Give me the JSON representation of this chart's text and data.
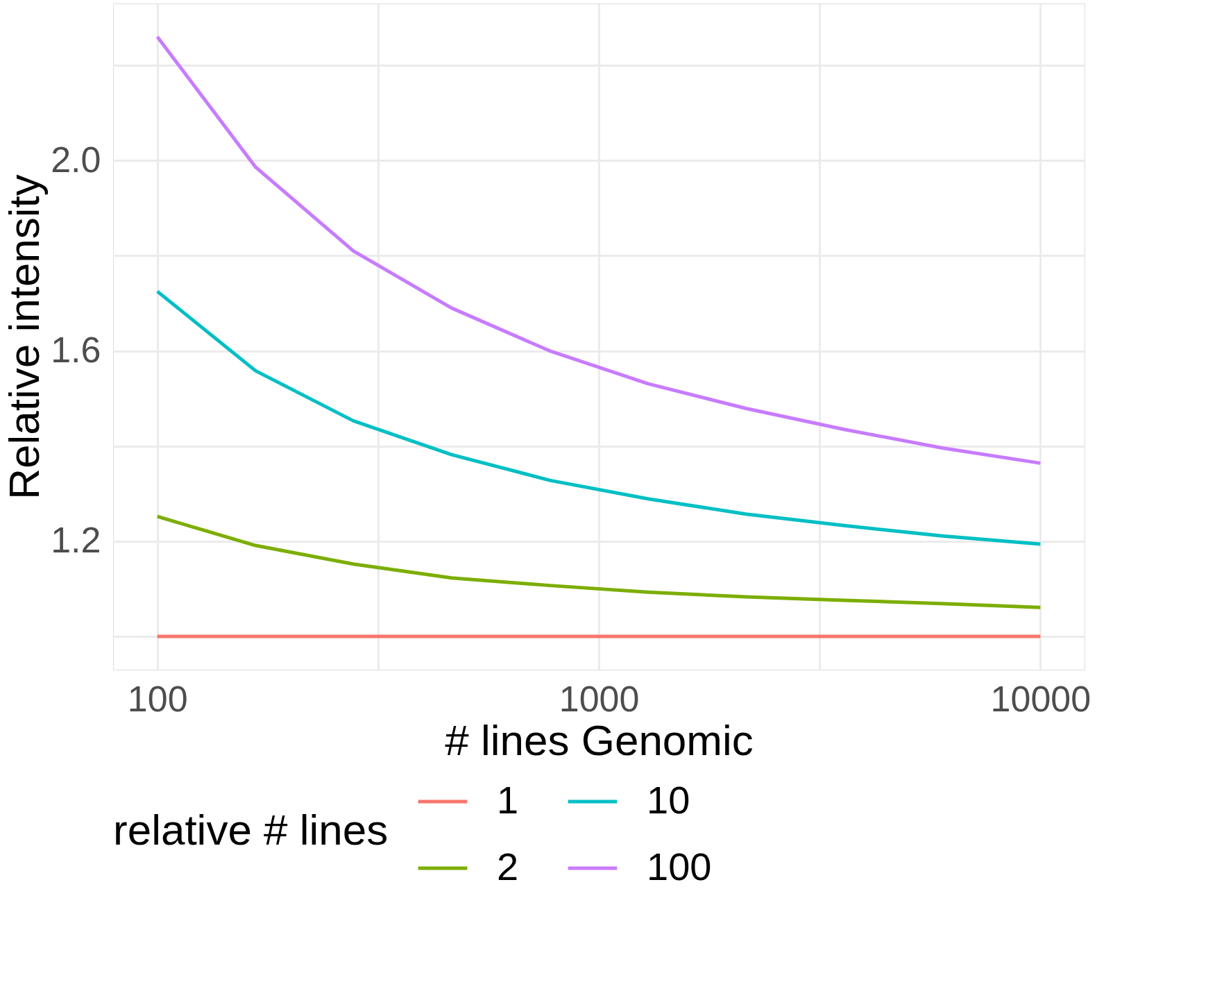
{
  "chart_data": {
    "type": "line",
    "xlabel": "# lines Genomic",
    "ylabel": "Relative intensity",
    "legend_title": "relative # lines",
    "x": [
      100,
      167,
      278,
      464,
      774,
      1292,
      2154,
      3594,
      5995,
      10000
    ],
    "series": [
      {
        "name": "1",
        "color": "#f8766d",
        "values": [
          1.0,
          1.0,
          1.0,
          1.0,
          1.0,
          1.0,
          1.0,
          1.0,
          1.0,
          1.0
        ]
      },
      {
        "name": "2",
        "color": "#7cae00",
        "values": [
          1.252,
          1.191,
          1.152,
          1.123,
          1.107,
          1.093,
          1.083,
          1.076,
          1.069,
          1.061
        ]
      },
      {
        "name": "10",
        "color": "#00bfc4",
        "values": [
          1.725,
          1.558,
          1.453,
          1.382,
          1.328,
          1.289,
          1.257,
          1.233,
          1.211,
          1.194
        ]
      },
      {
        "name": "100",
        "color": "#c77cff",
        "values": [
          2.26,
          1.986,
          1.81,
          1.69,
          1.6,
          1.531,
          1.479,
          1.435,
          1.396,
          1.364
        ]
      }
    ],
    "log": "x",
    "xlim": [
      79.4,
      12589
    ],
    "ylim": [
      0.93,
      2.33
    ],
    "xticks": [
      100,
      {
        "value": 316,
        "label": null
      },
      1000,
      {
        "value": 3162,
        "label": null
      },
      10000
    ],
    "yticks": [
      {
        "value": 1.0,
        "label": null
      },
      {
        "value": 1.2,
        "label": "1.2"
      },
      {
        "value": 1.4,
        "label": null
      },
      {
        "value": 1.6,
        "label": "1.6"
      },
      {
        "value": 1.8,
        "label": null
      },
      {
        "value": 2.0,
        "label": "2.0"
      },
      {
        "value": 2.2,
        "label": null
      }
    ],
    "grid": true,
    "legend": "bottom",
    "line_style": "solid"
  }
}
